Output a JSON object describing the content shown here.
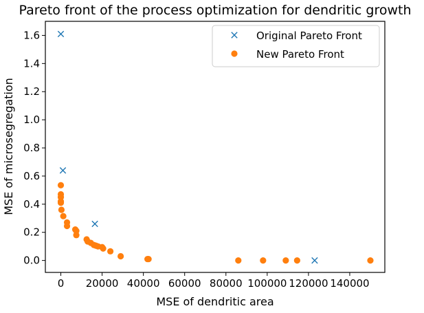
{
  "chart_data": {
    "type": "scatter",
    "title": "Pareto front of the process optimization for dendritic growth",
    "xlabel": "MSE of dendritic area",
    "ylabel": "MSE of microsegregation",
    "xlim": [
      -7500,
      157000
    ],
    "ylim": [
      -0.085,
      1.7
    ],
    "x_ticks": [
      0,
      20000,
      40000,
      60000,
      80000,
      100000,
      120000,
      140000
    ],
    "x_tick_labels": [
      "0",
      "20000",
      "40000",
      "60000",
      "80000",
      "100000",
      "120000",
      "140000"
    ],
    "y_ticks": [
      0.0,
      0.2,
      0.4,
      0.6,
      0.8,
      1.0,
      1.2,
      1.4,
      1.6
    ],
    "y_tick_labels": [
      "0.0",
      "0.2",
      "0.4",
      "0.6",
      "0.8",
      "1.0",
      "1.2",
      "1.4",
      "1.6"
    ],
    "grid": false,
    "legend_position": "top-right",
    "series": [
      {
        "name": "Original Pareto Front",
        "marker": "x",
        "color": "#1f77b4",
        "points": [
          {
            "x": 0,
            "y": 1.61
          },
          {
            "x": 1000,
            "y": 0.64
          },
          {
            "x": 16500,
            "y": 0.26
          },
          {
            "x": 123000,
            "y": 0.0
          }
        ]
      },
      {
        "name": "New Pareto Front",
        "marker": "circle",
        "color": "#ff7f0e",
        "points": [
          {
            "x": 0,
            "y": 0.535
          },
          {
            "x": 0,
            "y": 0.47
          },
          {
            "x": 0,
            "y": 0.45
          },
          {
            "x": 0,
            "y": 0.42
          },
          {
            "x": 0,
            "y": 0.41
          },
          {
            "x": 300,
            "y": 0.36
          },
          {
            "x": 1200,
            "y": 0.315
          },
          {
            "x": 3000,
            "y": 0.27
          },
          {
            "x": 3000,
            "y": 0.245
          },
          {
            "x": 7000,
            "y": 0.22
          },
          {
            "x": 7500,
            "y": 0.21
          },
          {
            "x": 7500,
            "y": 0.18
          },
          {
            "x": 12500,
            "y": 0.15
          },
          {
            "x": 13000,
            "y": 0.135
          },
          {
            "x": 14500,
            "y": 0.125
          },
          {
            "x": 16000,
            "y": 0.11
          },
          {
            "x": 17000,
            "y": 0.105
          },
          {
            "x": 18000,
            "y": 0.1
          },
          {
            "x": 20000,
            "y": 0.095
          },
          {
            "x": 20500,
            "y": 0.085
          },
          {
            "x": 24000,
            "y": 0.065
          },
          {
            "x": 29000,
            "y": 0.03
          },
          {
            "x": 42000,
            "y": 0.01
          },
          {
            "x": 42500,
            "y": 0.01
          },
          {
            "x": 86000,
            "y": 0.0
          },
          {
            "x": 98000,
            "y": 0.0
          },
          {
            "x": 109000,
            "y": 0.0
          },
          {
            "x": 114500,
            "y": 0.0
          },
          {
            "x": 150000,
            "y": 0.0
          }
        ]
      }
    ]
  }
}
